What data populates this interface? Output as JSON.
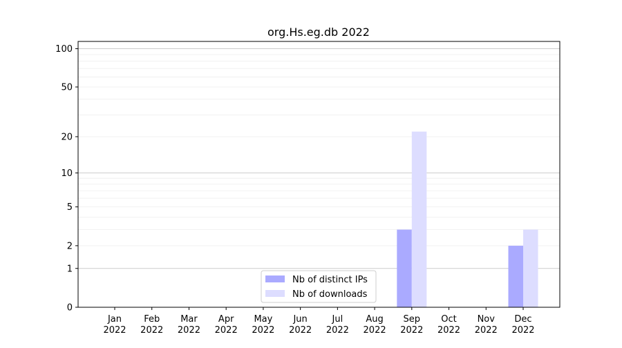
{
  "chart_data": {
    "type": "bar",
    "title": "org.Hs.eg.db 2022",
    "xlabel": "",
    "ylabel": "",
    "yscale": "log(1+y)",
    "ylim": [
      0,
      114
    ],
    "yticks": [
      0,
      1,
      2,
      5,
      10,
      20,
      50,
      100
    ],
    "grid": true,
    "legend_position": "lower-center",
    "categories": [
      "Jan\n2022",
      "Feb\n2022",
      "Mar\n2022",
      "Apr\n2022",
      "May\n2022",
      "Jun\n2022",
      "Jul\n2022",
      "Aug\n2022",
      "Sep\n2022",
      "Oct\n2022",
      "Nov\n2022",
      "Dec\n2022"
    ],
    "series": [
      {
        "name": "Nb of distinct IPs",
        "color": "#aaaaff",
        "values": [
          0,
          0,
          0,
          0,
          0,
          0,
          0,
          0,
          3,
          0,
          0,
          2
        ]
      },
      {
        "name": "Nb of downloads",
        "color": "#ddddff",
        "values": [
          0,
          0,
          0,
          0,
          0,
          0,
          0,
          0,
          22,
          0,
          0,
          3
        ]
      }
    ]
  }
}
